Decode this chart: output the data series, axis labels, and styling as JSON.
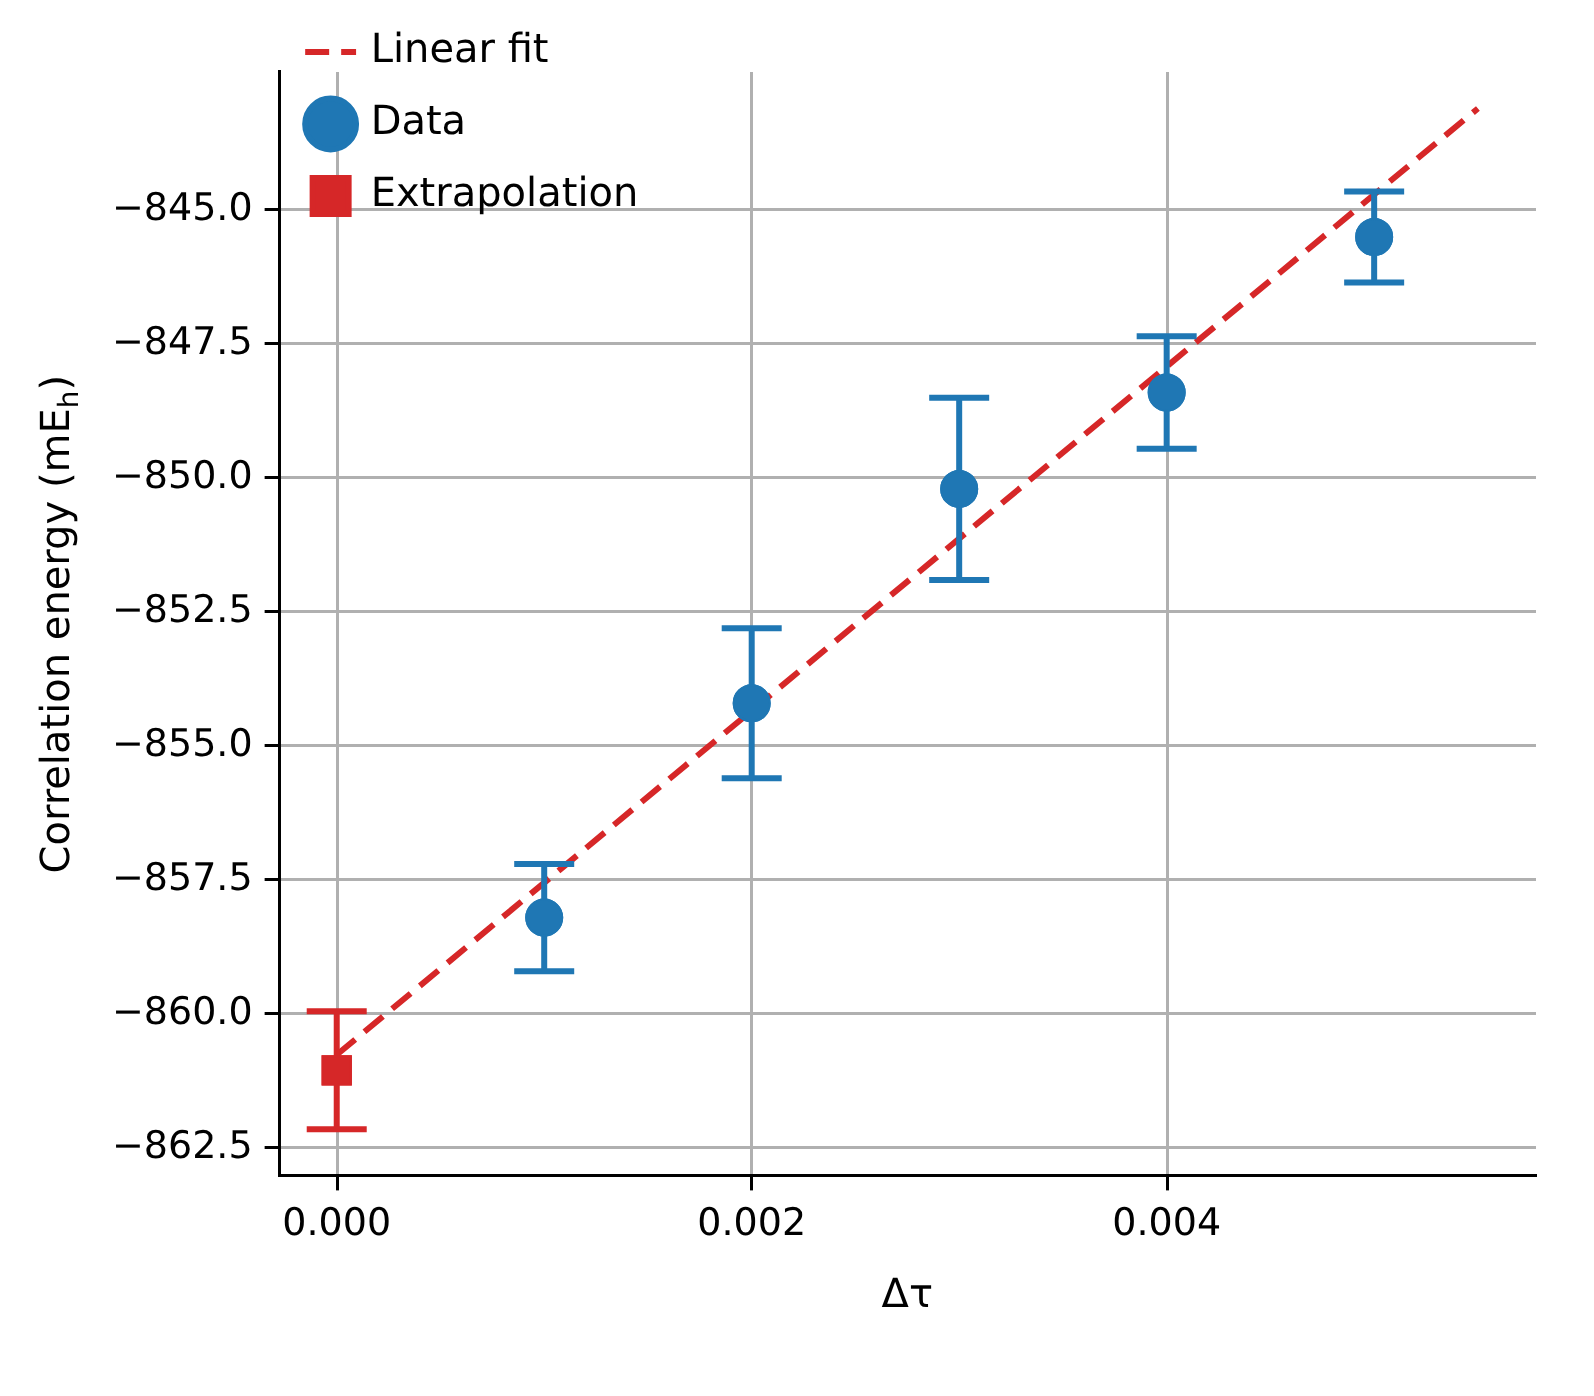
{
  "chart_data": {
    "type": "scatter",
    "xlabel": "Δτ",
    "ylabel": "Correlation energy (mE$_{h}$)",
    "xlim": [
      -0.00028,
      0.00578
    ],
    "ylim": [
      -863.03,
      -842.42
    ],
    "xticks": [
      {
        "value": 0,
        "label": "0.000"
      },
      {
        "value": 0.002,
        "label": "0.002"
      },
      {
        "value": 0.004,
        "label": "0.004"
      }
    ],
    "yticks": [
      {
        "value": -862.5,
        "label": "−862.5"
      },
      {
        "value": -860,
        "label": "−860.0"
      },
      {
        "value": -857.5,
        "label": "−857.5"
      },
      {
        "value": -855,
        "label": "−855.0"
      },
      {
        "value": -852.5,
        "label": "−852.5"
      },
      {
        "value": -850,
        "label": "−850.0"
      },
      {
        "value": -847.5,
        "label": "−847.5"
      },
      {
        "value": -845,
        "label": "−845.0"
      }
    ],
    "grid": true,
    "legend": "top left",
    "series": [
      {
        "name": "Linear fit",
        "type": "line",
        "line_style": "dashed",
        "marker": "none",
        "color": "#d62728",
        "x": [
          0,
          0.0055
        ],
        "values": [
          -860.76,
          -843.1
        ]
      },
      {
        "name": "Data",
        "type": "scatter",
        "marker": "circle",
        "color": "#1f77b4",
        "x": [
          0.001,
          0.002,
          0.003,
          0.004,
          0.005
        ],
        "values": [
          -858.2,
          -854.2,
          -850.2,
          -848.4,
          -845.5
        ],
        "errors": [
          1.0,
          1.4,
          1.7,
          1.05,
          0.85
        ]
      },
      {
        "name": "Extrapolation",
        "type": "scatter",
        "marker": "square",
        "color": "#d62728",
        "x": [
          0
        ],
        "values": [
          -861.05
        ],
        "errors": [
          1.1
        ]
      }
    ]
  }
}
